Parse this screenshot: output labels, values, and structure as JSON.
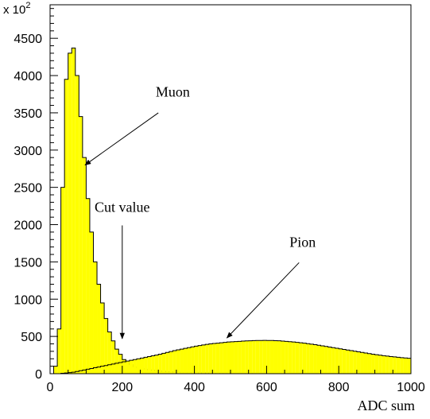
{
  "chart_data": {
    "type": "bar",
    "xlabel": "ADC sum",
    "ylabel": "",
    "y_multiplier_label": "x 10",
    "y_multiplier_exponent": "2",
    "xlim": [
      0,
      1000
    ],
    "ylim": [
      0,
      4950
    ],
    "x_ticks": [
      0,
      200,
      400,
      600,
      800,
      1000
    ],
    "x_tick_labels": [
      "0",
      "200",
      "400",
      "600",
      "800",
      "1000"
    ],
    "y_ticks": [
      0,
      500,
      1000,
      1500,
      2000,
      2500,
      3000,
      3500,
      4000,
      4500
    ],
    "y_tick_labels": [
      "0",
      "500",
      "1000",
      "1500",
      "2000",
      "2500",
      "3000",
      "3500",
      "4000",
      "4500"
    ],
    "fill_color": "#ffff00",
    "line_color": "#000000",
    "series": [
      {
        "bin_width": 10,
        "bin_low_edges": [
          0,
          10,
          20,
          30,
          40,
          50,
          60,
          70,
          80,
          90,
          100,
          110,
          120,
          130,
          140,
          150,
          160,
          170,
          180,
          190,
          200,
          210,
          220,
          230,
          240,
          250,
          260,
          270,
          280,
          290,
          300,
          310,
          320,
          330,
          340,
          350,
          360,
          370,
          380,
          390,
          400,
          410,
          420,
          430,
          440,
          450,
          460,
          470,
          480,
          490,
          500,
          510,
          520,
          530,
          540,
          550,
          560,
          570,
          580,
          590,
          600,
          610,
          620,
          630,
          640,
          650,
          660,
          670,
          680,
          690,
          700,
          710,
          720,
          730,
          740,
          750,
          760,
          770,
          780,
          790,
          800,
          810,
          820,
          830,
          840,
          850,
          860,
          870,
          880,
          890,
          900,
          910,
          920,
          930,
          940,
          950,
          960,
          970,
          980,
          990
        ],
        "values": [
          0,
          100,
          600,
          2500,
          3950,
          4300,
          4370,
          4000,
          3450,
          2900,
          2350,
          1900,
          1500,
          1200,
          950,
          740,
          560,
          440,
          330,
          260,
          190,
          150,
          120,
          95,
          80,
          70,
          60,
          50,
          45,
          40,
          35,
          32,
          28,
          25,
          22,
          20,
          18,
          16,
          14,
          12,
          11,
          10,
          9,
          8,
          7,
          6,
          6,
          5,
          5,
          4,
          4,
          4,
          3,
          3,
          3,
          3,
          2,
          2,
          2,
          2,
          2,
          2,
          2,
          2,
          1,
          1,
          1,
          1,
          1,
          1,
          1,
          1,
          1,
          1,
          1,
          1,
          1,
          1,
          1,
          1,
          0,
          0,
          0,
          0,
          0,
          0,
          0,
          0,
          0,
          0,
          0,
          0,
          0,
          0,
          0,
          0,
          0,
          0,
          0,
          0
        ]
      },
      {
        "bin_width": 10,
        "bin_low_edges": [
          0,
          10,
          20,
          30,
          40,
          50,
          60,
          70,
          80,
          90,
          100,
          110,
          120,
          130,
          140,
          150,
          160,
          170,
          180,
          190,
          200,
          210,
          220,
          230,
          240,
          250,
          260,
          270,
          280,
          290,
          300,
          310,
          320,
          330,
          340,
          350,
          360,
          370,
          380,
          390,
          400,
          410,
          420,
          430,
          440,
          450,
          460,
          470,
          480,
          490,
          500,
          510,
          520,
          530,
          540,
          550,
          560,
          570,
          580,
          590,
          600,
          610,
          620,
          630,
          640,
          650,
          660,
          670,
          680,
          690,
          700,
          710,
          720,
          730,
          740,
          750,
          760,
          770,
          780,
          790,
          800,
          810,
          820,
          830,
          840,
          850,
          860,
          870,
          880,
          890,
          900,
          910,
          920,
          930,
          940,
          950,
          960,
          970,
          980,
          990
        ],
        "values": [
          0,
          0,
          0,
          5,
          10,
          15,
          20,
          30,
          40,
          50,
          60,
          70,
          80,
          90,
          100,
          110,
          120,
          130,
          140,
          150,
          160,
          170,
          180,
          190,
          200,
          210,
          220,
          230,
          240,
          250,
          262,
          274,
          286,
          298,
          310,
          320,
          330,
          340,
          350,
          360,
          369,
          377,
          385,
          393,
          400,
          405,
          410,
          415,
          420,
          425,
          428,
          431,
          434,
          437,
          440,
          442,
          444,
          445,
          446,
          447,
          446,
          445,
          443,
          441,
          438,
          434,
          430,
          425,
          420,
          415,
          409,
          403,
          396,
          389,
          382,
          374,
          366,
          358,
          350,
          342,
          334,
          326,
          318,
          310,
          302,
          294,
          286,
          278,
          270,
          262,
          255,
          248,
          242,
          236,
          230,
          225,
          220,
          215,
          211,
          207
        ]
      }
    ],
    "annotations": [
      {
        "text": "Muon",
        "x": 340,
        "y": 3720,
        "arrow_from": [
          300,
          3500
        ],
        "arrow_to": [
          97,
          2800
        ]
      },
      {
        "text": "Cut value",
        "x": 200,
        "y": 2170,
        "arrow_from": [
          200,
          1990
        ],
        "arrow_to": [
          200,
          470
        ]
      },
      {
        "text": "Pion",
        "x": 700,
        "y": 1700,
        "arrow_from": [
          690,
          1490
        ],
        "arrow_to": [
          490,
          480
        ]
      }
    ]
  }
}
